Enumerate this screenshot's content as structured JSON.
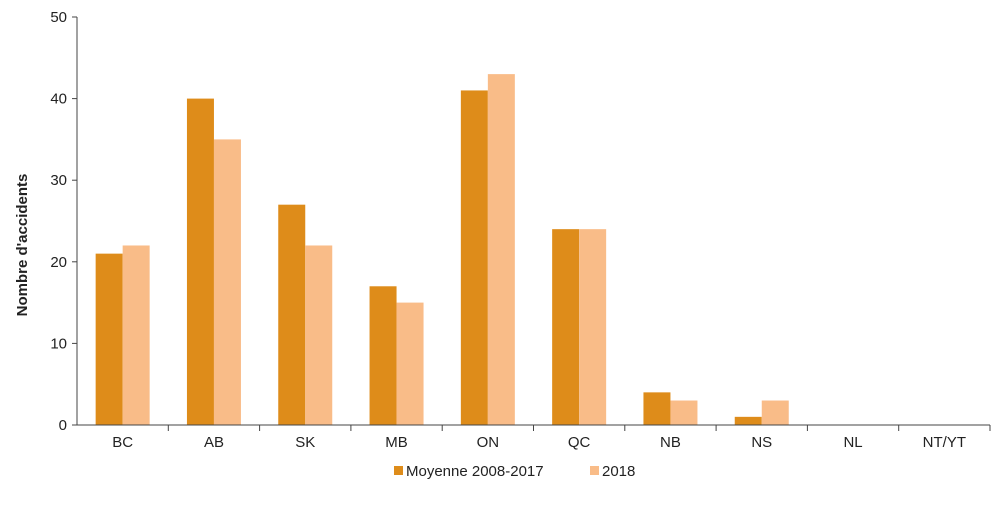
{
  "chart_data": {
    "type": "bar",
    "title": "",
    "xlabel": "",
    "ylabel": "Nombre d'accidents",
    "ylim": [
      0,
      50
    ],
    "yticks": [
      0,
      10,
      20,
      30,
      40,
      50
    ],
    "grid": false,
    "legend_position": "bottom",
    "categories": [
      "BC",
      "AB",
      "SK",
      "MB",
      "ON",
      "QC",
      "NB",
      "NS",
      "NL",
      "NT/YT"
    ],
    "series": [
      {
        "name": "Moyenne 2008-2017",
        "color": "#DE8C1A",
        "values": [
          21,
          40,
          27,
          17,
          41,
          24,
          4,
          1,
          0,
          0
        ]
      },
      {
        "name": "2018",
        "color": "#F9BC88",
        "values": [
          22,
          35,
          22,
          15,
          43,
          24,
          3,
          3,
          0,
          0
        ]
      }
    ]
  }
}
